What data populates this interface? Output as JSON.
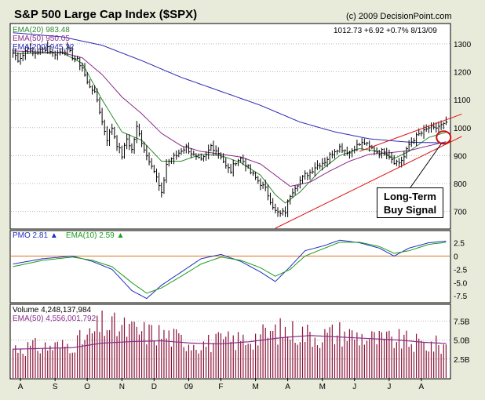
{
  "title": "S&P 500 Large Cap Index ($SPX)",
  "copyright": "(c) 2009 DecisionPoint.com",
  "quote": "1012.73  +6.92  +0.7%  8/13/09",
  "colors": {
    "background": "#e8ebda",
    "panel": "#ffffff",
    "price_bars": "#000000",
    "ema20": "#2f8a2f",
    "ema50": "#8b2a8b",
    "ema200": "#2a2ab5",
    "trendline": "#e01010",
    "pmo": "#2030c0",
    "pmo_signal": "#1c9c1c",
    "zero_line": "#e07020",
    "volume": "#8a1238",
    "volume_ema": "#8b2a8b",
    "buy_circle": "#cc1010"
  },
  "legend": {
    "ema20": "EMA(20) 983.48",
    "ema50": "EMA(50) 950.05",
    "ema200": "EMA(200) 945.32",
    "pmo": "PMO  2.81",
    "pmo_ema": "EMA(10)  2.59",
    "volume": "Volume  4,248,137,984",
    "volume_ema": "EMA(50) 4,556,001,792"
  },
  "annotation": {
    "line1": "Long-Term",
    "line2": "Buy Signal"
  },
  "chart_data": [
    {
      "panel": "price",
      "type": "ohlc",
      "title": "S&P 500 Large Cap Index ($SPX)",
      "x_range": [
        "2008-08-01",
        "2009-08-13"
      ],
      "ylim": [
        640,
        1370
      ],
      "y_ticks": [
        700,
        800,
        900,
        1000,
        1100,
        1200,
        1300
      ],
      "y_tick_labels": [
        "700",
        "800",
        "900",
        "1000",
        "1100",
        "1200",
        "1300"
      ],
      "close_anchors": [
        [
          0,
          1270
        ],
        [
          2,
          1245
        ],
        [
          4,
          1260
        ],
        [
          6,
          1290
        ],
        [
          8,
          1265
        ],
        [
          12,
          1278
        ],
        [
          14,
          1290
        ],
        [
          16,
          1265
        ],
        [
          18,
          1268
        ],
        [
          20,
          1275
        ],
        [
          22,
          1280
        ],
        [
          24,
          1255
        ],
        [
          26,
          1240
        ],
        [
          28,
          1215
        ],
        [
          30,
          1160
        ],
        [
          32,
          1140
        ],
        [
          34,
          1100
        ],
        [
          36,
          1020
        ],
        [
          38,
          960
        ],
        [
          40,
          1000
        ],
        [
          42,
          940
        ],
        [
          44,
          900
        ],
        [
          46,
          960
        ],
        [
          48,
          920
        ],
        [
          50,
          1000
        ],
        [
          52,
          950
        ],
        [
          54,
          900
        ],
        [
          56,
          870
        ],
        [
          58,
          820
        ],
        [
          60,
          760
        ],
        [
          62,
          870
        ],
        [
          64,
          890
        ],
        [
          66,
          900
        ],
        [
          68,
          920
        ],
        [
          70,
          930
        ],
        [
          72,
          910
        ],
        [
          74,
          890
        ],
        [
          76,
          880
        ],
        [
          78,
          900
        ],
        [
          80,
          935
        ],
        [
          82,
          920
        ],
        [
          84,
          900
        ],
        [
          86,
          860
        ],
        [
          88,
          845
        ],
        [
          90,
          880
        ],
        [
          92,
          890
        ],
        [
          94,
          870
        ],
        [
          96,
          840
        ],
        [
          98,
          820
        ],
        [
          100,
          800
        ],
        [
          102,
          780
        ],
        [
          104,
          740
        ],
        [
          106,
          700
        ],
        [
          108,
          690
        ],
        [
          110,
          700
        ],
        [
          112,
          760
        ],
        [
          114,
          790
        ],
        [
          116,
          810
        ],
        [
          118,
          830
        ],
        [
          120,
          840
        ],
        [
          122,
          860
        ],
        [
          124,
          870
        ],
        [
          126,
          880
        ],
        [
          128,
          900
        ],
        [
          130,
          920
        ],
        [
          132,
          930
        ],
        [
          134,
          920
        ],
        [
          136,
          910
        ],
        [
          138,
          930
        ],
        [
          140,
          940
        ],
        [
          142,
          945
        ],
        [
          144,
          930
        ],
        [
          146,
          920
        ],
        [
          148,
          910
        ],
        [
          150,
          920
        ],
        [
          152,
          900
        ],
        [
          154,
          880
        ],
        [
          156,
          875
        ],
        [
          158,
          895
        ],
        [
          160,
          940
        ],
        [
          162,
          960
        ],
        [
          164,
          975
        ],
        [
          166,
          985
        ],
        [
          168,
          1000
        ],
        [
          170,
          995
        ],
        [
          172,
          1005
        ],
        [
          174,
          1010
        ],
        [
          175,
          1012.73
        ]
      ],
      "series": [
        {
          "name": "EMA(20)",
          "last": 983.48,
          "anchors": [
            [
              0,
              1265
            ],
            [
              20,
              1268
            ],
            [
              28,
              1230
            ],
            [
              36,
              1100
            ],
            [
              44,
              985
            ],
            [
              52,
              955
            ],
            [
              60,
              880
            ],
            [
              68,
              880
            ],
            [
              76,
              905
            ],
            [
              84,
              900
            ],
            [
              92,
              875
            ],
            [
              100,
              830
            ],
            [
              106,
              760
            ],
            [
              110,
              730
            ],
            [
              116,
              770
            ],
            [
              124,
              845
            ],
            [
              132,
              900
            ],
            [
              140,
              925
            ],
            [
              148,
              915
            ],
            [
              154,
              890
            ],
            [
              160,
              915
            ],
            [
              168,
              965
            ],
            [
              175,
              983.48
            ]
          ]
        },
        {
          "name": "EMA(50)",
          "last": 950.05,
          "anchors": [
            [
              0,
              1275
            ],
            [
              20,
              1268
            ],
            [
              28,
              1250
            ],
            [
              36,
              1190
            ],
            [
              44,
              1110
            ],
            [
              52,
              1050
            ],
            [
              60,
              980
            ],
            [
              68,
              935
            ],
            [
              76,
              915
            ],
            [
              84,
              905
            ],
            [
              92,
              895
            ],
            [
              100,
              870
            ],
            [
              106,
              830
            ],
            [
              112,
              790
            ],
            [
              120,
              805
            ],
            [
              128,
              845
            ],
            [
              136,
              880
            ],
            [
              144,
              905
            ],
            [
              152,
              910
            ],
            [
              160,
              918
            ],
            [
              168,
              935
            ],
            [
              175,
              950.05
            ]
          ]
        },
        {
          "name": "EMA(200)",
          "last": 945.32,
          "anchors": [
            [
              0,
              1340
            ],
            [
              20,
              1325
            ],
            [
              36,
              1295
            ],
            [
              52,
              1240
            ],
            [
              68,
              1180
            ],
            [
              84,
              1130
            ],
            [
              100,
              1080
            ],
            [
              116,
              1020
            ],
            [
              130,
              985
            ],
            [
              144,
              960
            ],
            [
              160,
              948
            ],
            [
              175,
              945.32
            ]
          ]
        }
      ],
      "trendlines": [
        {
          "name": "upper",
          "from": [
            140,
            915
          ],
          "to": [
            175,
            1015
          ]
        },
        {
          "name": "lower",
          "from": [
            106,
            640
          ],
          "to": [
            175,
            935
          ]
        }
      ],
      "x_labels": [
        "A",
        "S",
        "O",
        "N",
        "D",
        "09",
        "F",
        "M",
        "A",
        "M",
        "J",
        "J",
        "A"
      ],
      "annotation": "Long-Term Buy Signal"
    },
    {
      "panel": "pmo",
      "type": "line",
      "ylim": [
        -8.5,
        4.5
      ],
      "y_ticks": [
        -7.5,
        -5,
        -2.5,
        0,
        2.5
      ],
      "y_tick_labels": [
        "-7.5",
        "-5.0",
        "-2.5",
        "0",
        "2.5"
      ],
      "series": [
        {
          "name": "PMO",
          "last": 2.81,
          "anchors": [
            [
              0,
              -1.5
            ],
            [
              12,
              -0.5
            ],
            [
              24,
              0.0
            ],
            [
              32,
              -1.0
            ],
            [
              40,
              -2.5
            ],
            [
              48,
              -6.5
            ],
            [
              54,
              -8.0
            ],
            [
              60,
              -5.5
            ],
            [
              68,
              -3.0
            ],
            [
              76,
              -0.5
            ],
            [
              84,
              0.3
            ],
            [
              92,
              -1.0
            ],
            [
              100,
              -3.0
            ],
            [
              106,
              -4.8
            ],
            [
              112,
              -2.0
            ],
            [
              118,
              1.0
            ],
            [
              126,
              2.0
            ],
            [
              132,
              3.0
            ],
            [
              140,
              2.5
            ],
            [
              148,
              1.5
            ],
            [
              154,
              0.0
            ],
            [
              160,
              1.5
            ],
            [
              168,
              2.5
            ],
            [
              175,
              2.81
            ]
          ]
        },
        {
          "name": "EMA(10)",
          "last": 2.59,
          "anchors": [
            [
              0,
              -2.0
            ],
            [
              12,
              -0.8
            ],
            [
              24,
              -0.2
            ],
            [
              32,
              -0.8
            ],
            [
              40,
              -2.0
            ],
            [
              48,
              -5.0
            ],
            [
              54,
              -7.0
            ],
            [
              60,
              -6.0
            ],
            [
              68,
              -3.8
            ],
            [
              76,
              -1.5
            ],
            [
              84,
              -0.2
            ],
            [
              92,
              -0.8
            ],
            [
              100,
              -2.2
            ],
            [
              106,
              -3.8
            ],
            [
              112,
              -2.5
            ],
            [
              118,
              0.0
            ],
            [
              126,
              1.5
            ],
            [
              132,
              2.6
            ],
            [
              140,
              2.6
            ],
            [
              148,
              1.8
            ],
            [
              154,
              0.5
            ],
            [
              160,
              1.0
            ],
            [
              168,
              2.2
            ],
            [
              175,
              2.59
            ]
          ]
        }
      ],
      "zero_line": 0
    },
    {
      "panel": "volume",
      "type": "bar",
      "ylim": [
        0,
        9.5
      ],
      "y_ticks": [
        2.5,
        5,
        7.5
      ],
      "y_tick_labels": [
        "2.5B",
        "5.0B",
        "7.5B"
      ],
      "units": "billions of shares",
      "volume_last": 4.248,
      "volume_anchors": [
        [
          0,
          4.0
        ],
        [
          20,
          4.2
        ],
        [
          30,
          5.2
        ],
        [
          36,
          7.0
        ],
        [
          44,
          6.5
        ],
        [
          52,
          6.0
        ],
        [
          60,
          5.8
        ],
        [
          68,
          5.0
        ],
        [
          76,
          4.5
        ],
        [
          84,
          4.8
        ],
        [
          92,
          5.0
        ],
        [
          100,
          5.5
        ],
        [
          108,
          6.2
        ],
        [
          116,
          6.0
        ],
        [
          124,
          5.5
        ],
        [
          132,
          6.0
        ],
        [
          140,
          5.5
        ],
        [
          148,
          5.0
        ],
        [
          156,
          5.0
        ],
        [
          164,
          4.5
        ],
        [
          175,
          4.248
        ]
      ],
      "ema_name": "EMA(50)",
      "ema_last": 4.556,
      "ema_anchors": [
        [
          0,
          3.8
        ],
        [
          24,
          4.0
        ],
        [
          36,
          4.6
        ],
        [
          48,
          4.8
        ],
        [
          60,
          4.9
        ],
        [
          72,
          4.6
        ],
        [
          84,
          4.5
        ],
        [
          96,
          4.8
        ],
        [
          108,
          5.3
        ],
        [
          120,
          5.6
        ],
        [
          132,
          5.4
        ],
        [
          144,
          5.2
        ],
        [
          156,
          5.0
        ],
        [
          166,
          4.7
        ],
        [
          175,
          4.556
        ]
      ]
    }
  ]
}
